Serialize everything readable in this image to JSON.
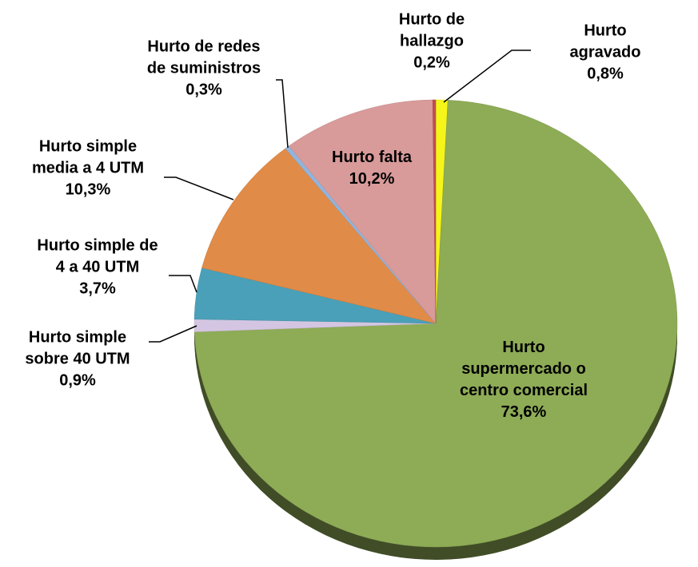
{
  "chart_data": {
    "type": "pie",
    "categories": [
      "Hurto agravado",
      "Hurto\nsupermercado o\ncentro comercial",
      "Hurto simple\nsobre 40 UTM",
      "Hurto simple de\n4 a 40 UTM",
      "Hurto simple\nmedia a 4 UTM",
      "Hurto de redes\nde suministros",
      "Hurto falta",
      "Hurto de\nhallazgo"
    ],
    "values": [
      0.8,
      73.6,
      0.9,
      3.7,
      10.3,
      0.3,
      10.2,
      0.2
    ],
    "value_labels": [
      "0,8%",
      "73,6%",
      "0,9%",
      "3,7%",
      "10,3%",
      "0,3%",
      "10,2%",
      "0,2%"
    ],
    "colors": [
      "#f5f519",
      "#8eab56",
      "#d4c6e2",
      "#4aa0b8",
      "#e08b48",
      "#92b4dc",
      "#d99a9a",
      "#c0504d"
    ]
  }
}
